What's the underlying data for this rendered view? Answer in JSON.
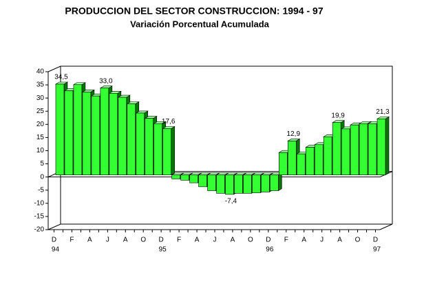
{
  "chart_data": {
    "type": "bar3d",
    "title": "PRODUCCION DEL SECTOR CONSTRUCCION: 1994 - 97",
    "subtitle": "Variación Porcentual Acumulada",
    "categories": [
      "D",
      null,
      "F",
      null,
      "A",
      null,
      "J",
      null,
      "A",
      null,
      "O",
      null,
      "D",
      null,
      "F",
      null,
      "A",
      null,
      "J",
      null,
      "A",
      null,
      "O",
      null,
      "D",
      null,
      "F",
      null,
      "A",
      null,
      "J",
      null,
      "A",
      null,
      "O",
      null,
      "D"
    ],
    "years": [
      "94",
      "95",
      "96",
      "97"
    ],
    "values": [
      34.5,
      32,
      34.3,
      31.5,
      30,
      33.0,
      31,
      29.5,
      27,
      23.5,
      21.5,
      19.5,
      17.6,
      -1.5,
      -2,
      -3,
      -4.5,
      -6,
      -7,
      -7.4,
      -7,
      -7,
      -6.8,
      -6.5,
      -6,
      8.5,
      12.9,
      8,
      10.5,
      11.5,
      14.5,
      19.9,
      17.5,
      19,
      19.5,
      19.5,
      21.3
    ],
    "value_labels": [
      "34,5",
      null,
      null,
      null,
      null,
      "33,0",
      null,
      null,
      null,
      null,
      null,
      null,
      "17,6",
      null,
      null,
      null,
      null,
      null,
      null,
      "-7,4",
      null,
      null,
      null,
      null,
      null,
      null,
      "12,9",
      null,
      null,
      null,
      null,
      "19,9",
      null,
      null,
      null,
      null,
      "21,3"
    ],
    "color": "#33ff33",
    "ylim": [
      -20,
      40
    ],
    "yticks": [
      -20,
      -15,
      -10,
      -5,
      0,
      5,
      10,
      15,
      20,
      25,
      30,
      35,
      40
    ]
  }
}
